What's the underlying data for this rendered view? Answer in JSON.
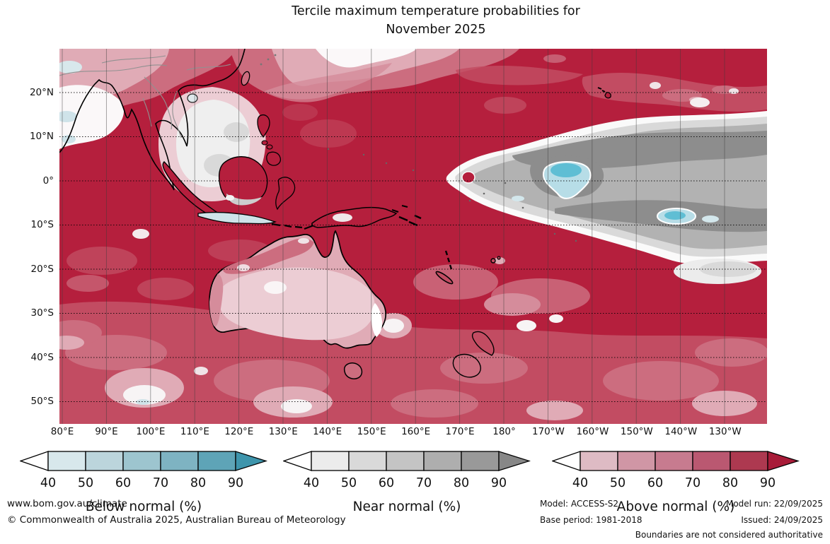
{
  "title": {
    "line1": "Tercile maximum temperature probabilities for",
    "line2": "November 2025"
  },
  "map": {
    "lat_ticks": [
      "20°N",
      "10°N",
      "0°",
      "10°S",
      "20°S",
      "30°S",
      "40°S",
      "50°S"
    ],
    "lon_ticks": [
      "80°E",
      "90°E",
      "100°E",
      "110°E",
      "120°E",
      "130°E",
      "140°E",
      "150°E",
      "160°E",
      "170°E",
      "180°",
      "170°W",
      "160°W",
      "150°W",
      "140°W",
      "130°W"
    ]
  },
  "legends": [
    {
      "label": "Below normal (%)",
      "ticks": [
        "40",
        "50",
        "60",
        "70",
        "80",
        "90"
      ],
      "under_color": "#ffffff",
      "segment_colors": [
        "#d8e8ec",
        "#bcd5dc",
        "#9dc5cf",
        "#7eb3c2",
        "#5ea4b7"
      ],
      "over_color": "#3e95ac"
    },
    {
      "label": "Near normal (%)",
      "ticks": [
        "40",
        "50",
        "60",
        "70",
        "80",
        "90"
      ],
      "under_color": "#ffffff",
      "segment_colors": [
        "#ececec",
        "#d9d9d9",
        "#c4c4c4",
        "#aeaeae",
        "#999999"
      ],
      "over_color": "#878787"
    },
    {
      "label": "Above normal (%)",
      "ticks": [
        "40",
        "50",
        "60",
        "70",
        "80",
        "90"
      ],
      "under_color": "#ffffff",
      "segment_colors": [
        "#debbc4",
        "#d096a5",
        "#c77b8f",
        "#ba5871",
        "#ad3950"
      ],
      "over_color": "#a81b38"
    }
  ],
  "footer": {
    "url": "www.bom.gov.au/climate",
    "copyright": "© Commonwealth of Australia 2025, Australian Bureau of Meteorology"
  },
  "attribution": {
    "model": "Model: ACCESS-S2",
    "base_period": "Base period: 1981-2018",
    "model_run": "Model run: 22/09/2025",
    "issued": "Issued: 24/09/2025",
    "boundaries": "Boundaries are not considered authoritative"
  }
}
